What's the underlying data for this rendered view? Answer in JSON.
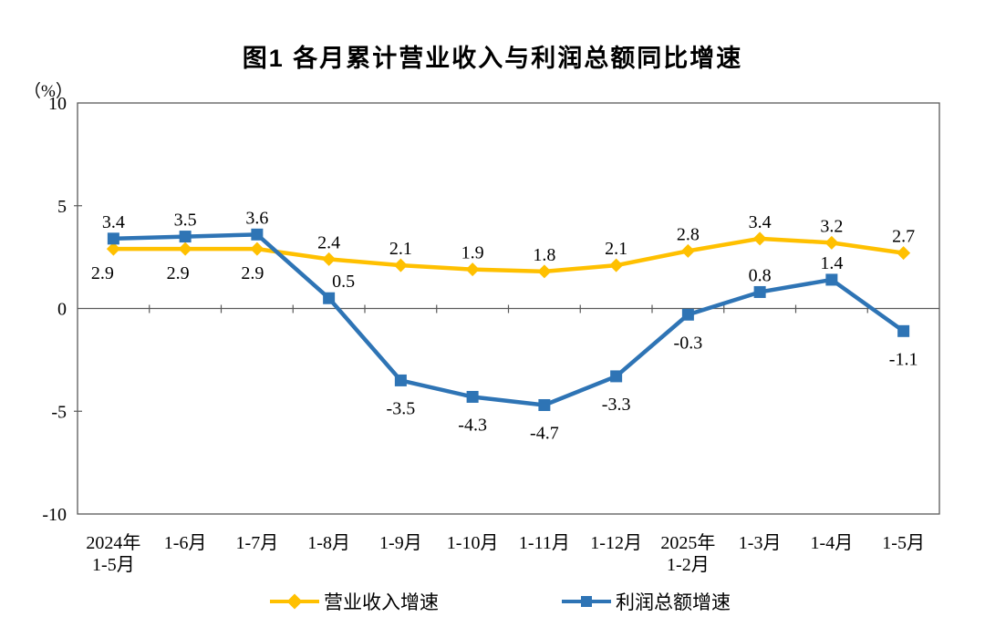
{
  "title": "图1 各月累计营业收入与利润总额同比增速",
  "y_axis_unit": "（%）",
  "legend": {
    "items": [
      {
        "label": "营业收入增速",
        "color": "#FFC000",
        "marker": "diamond"
      },
      {
        "label": "利润总额增速",
        "color": "#2E74B5",
        "marker": "square"
      }
    ]
  },
  "colors": {
    "revenue_series": "#FFC000",
    "profit_series": "#2E74B5",
    "axis": "#595959",
    "zero_line": "#595959",
    "text": "#000000",
    "background": "#FFFFFF"
  },
  "chart_data": {
    "type": "line",
    "title": "图1 各月累计营业收入与利润总额同比增速",
    "categories": [
      "2024年\n1-5月",
      "1-6月",
      "1-7月",
      "1-8月",
      "1-9月",
      "1-10月",
      "1-11月",
      "1-12月",
      "2025年\n1-2月",
      "1-3月",
      "1-4月",
      "1-5月"
    ],
    "series": [
      {
        "name": "营业收入增速",
        "color": "#FFC000",
        "marker": "diamond",
        "values": [
          2.9,
          2.9,
          2.9,
          2.4,
          2.1,
          1.9,
          1.8,
          2.1,
          2.8,
          3.4,
          3.2,
          2.7
        ],
        "label_positions": [
          "below",
          "below",
          "below",
          "above",
          "above",
          "above",
          "above",
          "above",
          "above",
          "above",
          "above",
          "above"
        ],
        "label_dx": [
          -12,
          -8,
          -5,
          0,
          0,
          0,
          0,
          0,
          0,
          0,
          0,
          0
        ]
      },
      {
        "name": "利润总额增速",
        "color": "#2E74B5",
        "marker": "square",
        "values": [
          3.4,
          3.5,
          3.6,
          0.5,
          -3.5,
          -4.3,
          -4.7,
          -3.3,
          -0.3,
          0.8,
          1.4,
          -1.1
        ],
        "label_positions": [
          "above",
          "above",
          "above",
          "above",
          "below",
          "below",
          "below",
          "below",
          "below",
          "above",
          "above",
          "below"
        ],
        "label_dx": [
          0,
          0,
          0,
          16,
          0,
          0,
          0,
          0,
          0,
          0,
          0,
          0
        ]
      }
    ],
    "xlabel": "",
    "ylabel": "（%）",
    "ylim": [
      -10,
      10
    ],
    "yticks": [
      10,
      5,
      0,
      -5,
      -10
    ],
    "grid": false,
    "data_labels": true,
    "legend_position": "bottom"
  }
}
